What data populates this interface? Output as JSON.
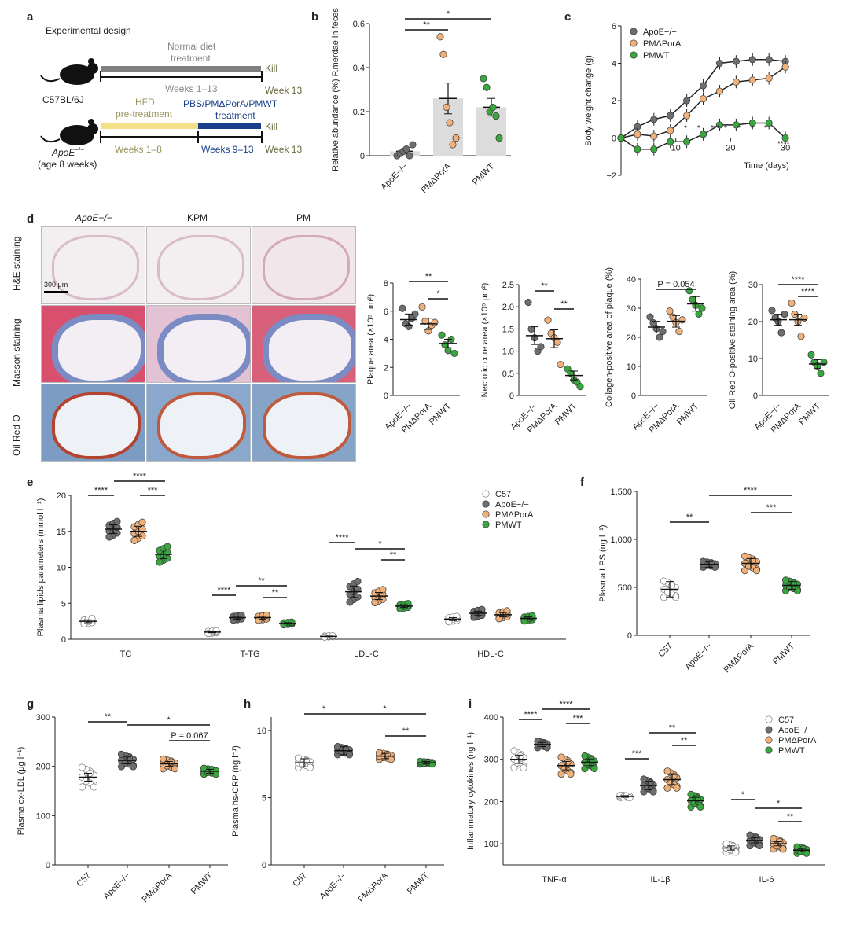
{
  "panels": {
    "a": "a",
    "b": "b",
    "c": "c",
    "d": "d",
    "e": "e",
    "f": "f",
    "g": "g",
    "h": "h",
    "i": "i"
  },
  "panel_a": {
    "title": "Experimental design",
    "mouse1": "C57BL/6J",
    "mouse2_name": "ApoE",
    "mouse2_sup": "−/−",
    "mouse2_age": "(age 8 weeks)",
    "normal_diet": "Normal diet",
    "treatment": "treatment",
    "weeks_1_13": "Weeks 1–13",
    "kill": "Kill",
    "week13": "Week 13",
    "hfd": "HFD",
    "pretreatment": "pre-treatment",
    "pbs_line": "PBS/PMΔPorA/PMWT",
    "weeks_1_8": "Weeks 1–8",
    "weeks_9_13": "Weeks 9–13",
    "colors": {
      "normal": "#808080",
      "hfd": "#f5e08a",
      "treat": "#1a3e8c",
      "hfd_text": "#9a9560",
      "treat_text": "#1a3e8c"
    }
  },
  "micro": {
    "columns": [
      "ApoE−/−",
      "KPM",
      "PM"
    ],
    "rows": [
      "H&E staining",
      "Masson staining",
      "Oil Red O"
    ],
    "scale": "300 μm"
  },
  "colors": {
    "apoe": "#6e6e6e",
    "pmd": "#f0b07a",
    "pmwt": "#3aa640",
    "c57": "#ffffff",
    "bar": "#dcdcdc"
  },
  "legend": {
    "c57": "C57",
    "apoe": "ApoE−/−",
    "pmd": "PMΔPorA",
    "pmwt": "PMWT"
  },
  "chart_data": [
    {
      "id": "b",
      "type": "bar",
      "categories": [
        "ApoE−/−",
        "PMΔPorA",
        "PMWT"
      ],
      "values": [
        0.02,
        0.26,
        0.22
      ],
      "errors": [
        0.01,
        0.07,
        0.04
      ],
      "points": [
        [
          0.0,
          0.01,
          0.02,
          0.03,
          0.0,
          0.05
        ],
        [
          0.54,
          0.46,
          0.22,
          0.15,
          0.05,
          0.08
        ],
        [
          0.35,
          0.31,
          0.2,
          0.22,
          0.18,
          0.08
        ]
      ],
      "ylabel": "Relative abundance (%) P.merdae in feces",
      "ylim": [
        0,
        0.6
      ],
      "yticks": [
        "0",
        "0.2",
        "0.4",
        "0.6"
      ],
      "sig": [
        {
          "label": "**"
        },
        {
          "label": "*"
        }
      ]
    },
    {
      "id": "c",
      "type": "line",
      "xlabel": "Time (days)",
      "ylabel": "Body weight change (g)",
      "xlim": [
        0,
        33
      ],
      "ylim": [
        -2,
        6
      ],
      "xticks": [
        "10",
        "20",
        "30"
      ],
      "yticks": [
        "−2",
        "0",
        "2",
        "4",
        "6"
      ],
      "series": [
        {
          "name": "ApoE−/−",
          "x": [
            0,
            3,
            6,
            9,
            12,
            15,
            18,
            21,
            24,
            27,
            30
          ],
          "y": [
            0,
            0.6,
            1.0,
            1.2,
            2.0,
            2.8,
            4.0,
            4.1,
            4.2,
            4.2,
            4.1
          ]
        },
        {
          "name": "PMΔPorA",
          "x": [
            0,
            3,
            6,
            9,
            12,
            15,
            18,
            21,
            24,
            27,
            30
          ],
          "y": [
            0,
            0.2,
            0.1,
            0.4,
            1.2,
            2.1,
            2.5,
            3.0,
            3.1,
            3.2,
            3.8
          ]
        },
        {
          "name": "PMWT",
          "x": [
            0,
            3,
            6,
            9,
            12,
            15,
            18,
            21,
            24,
            27,
            30
          ],
          "y": [
            0,
            -0.6,
            -0.6,
            -0.2,
            -0.2,
            0.2,
            0.7,
            0.7,
            0.8,
            0.8,
            0.0
          ]
        }
      ],
      "sig": [
        "*",
        "*",
        "***",
        "*",
        "*",
        "*",
        "*",
        "****"
      ]
    },
    {
      "id": "d1",
      "type": "scatter",
      "categories": [
        "ApoE−/−",
        "PMΔPorA",
        "PMWT"
      ],
      "ylabel": "Plaque area (×10⁵ μm²)",
      "ylim": [
        0,
        8
      ],
      "yticks": [
        "0",
        "2",
        "4",
        "6",
        "8"
      ],
      "means": [
        5.4,
        5.1,
        3.7
      ],
      "errors": [
        0.4,
        0.4,
        0.3
      ],
      "points": [
        [
          6.2,
          5.1,
          4.9,
          5.5,
          5.8
        ],
        [
          6.3,
          5.3,
          4.6,
          5.0,
          5.2
        ],
        [
          4.3,
          3.6,
          3.2,
          4.0,
          3.0
        ]
      ],
      "sig": [
        "**",
        "*"
      ]
    },
    {
      "id": "d2",
      "type": "scatter",
      "categories": [
        "ApoE−/−",
        "PMΔPorA",
        "PMWT"
      ],
      "ylabel": "Necrotic core area (×10⁵ μm²)",
      "ylim": [
        0,
        2.5
      ],
      "yticks": [
        "0",
        "0.5",
        "1.0",
        "1.5",
        "2.0",
        "2.5"
      ],
      "means": [
        1.35,
        1.28,
        0.45
      ],
      "errors": [
        0.2,
        0.2,
        0.1
      ],
      "points": [
        [
          2.1,
          1.5,
          1.3,
          1.0,
          1.1
        ],
        [
          1.7,
          1.4,
          1.3,
          1.2,
          0.7
        ],
        [
          0.6,
          0.5,
          0.35,
          0.3,
          0.2
        ]
      ],
      "sig": [
        "**",
        "**"
      ]
    },
    {
      "id": "d3",
      "type": "scatter",
      "categories": [
        "ApoE−/−",
        "PMΔPorA",
        "PMWT"
      ],
      "ylabel": "Collagen-positive area of plaque (%)",
      "ylim": [
        0,
        40
      ],
      "yticks": [
        "0",
        "10",
        "20",
        "30",
        "40"
      ],
      "means": [
        23.5,
        25.5,
        31.5
      ],
      "errors": [
        2,
        2,
        2.5
      ],
      "points": [
        [
          27,
          25,
          23,
          20,
          22
        ],
        [
          29,
          27,
          25,
          22,
          26
        ],
        [
          36,
          33,
          31,
          28,
          30
        ]
      ],
      "sig": [
        "P = 0.054"
      ]
    },
    {
      "id": "d4",
      "type": "scatter",
      "categories": [
        "ApoE−/−",
        "PMΔPorA",
        "PMWT"
      ],
      "ylabel": "Oil Red O-positive staining area (%)",
      "ylim": [
        0,
        30
      ],
      "yticks": [
        "0",
        "10",
        "20",
        "30"
      ],
      "means": [
        20.5,
        20.5,
        8.5
      ],
      "errors": [
        1.5,
        1.5,
        1.2
      ],
      "points": [
        [
          23,
          21,
          20,
          17,
          22
        ],
        [
          25,
          22,
          20,
          16,
          21
        ],
        [
          11,
          9,
          8,
          6,
          9
        ]
      ],
      "sig": [
        "****",
        "****"
      ]
    },
    {
      "id": "e",
      "type": "scatter",
      "groups": [
        "TC",
        "T-TG",
        "LDL-C",
        "HDL-C"
      ],
      "ylabel": "Plasma lipids parameters (mmol l⁻¹)",
      "ylim": [
        0,
        20
      ],
      "yticks": [
        "0",
        "5",
        "10",
        "15",
        "20"
      ],
      "means": [
        [
          2.5,
          15.3,
          15.0,
          11.8
        ],
        [
          1.0,
          3.0,
          3.0,
          2.2
        ],
        [
          0.4,
          6.6,
          6.0,
          4.6
        ],
        [
          2.8,
          3.6,
          3.4,
          2.9
        ]
      ],
      "errors": [
        [
          0.2,
          0.6,
          0.7,
          0.6
        ],
        [
          0.1,
          0.2,
          0.2,
          0.1
        ],
        [
          0.05,
          0.8,
          0.5,
          0.2
        ],
        [
          0.2,
          0.3,
          0.3,
          0.2
        ]
      ],
      "sig": [
        "****",
        "****",
        "***",
        "****",
        "**",
        "**",
        "****",
        "*",
        "**"
      ]
    },
    {
      "id": "f",
      "type": "scatter",
      "categories": [
        "C57",
        "ApoE−/−",
        "PMΔPorA",
        "PMWT"
      ],
      "ylabel": "Plasma LPS (ng l⁻¹)",
      "ylim": [
        0,
        1500
      ],
      "yticks": [
        "0",
        "500",
        "1,000",
        "1,500"
      ],
      "means": [
        480,
        740,
        750,
        520
      ],
      "errors": [
        80,
        30,
        50,
        40
      ],
      "spread": [
        170,
        60,
        150,
        110
      ],
      "sig": [
        "**",
        "****",
        "***"
      ]
    },
    {
      "id": "g",
      "type": "scatter",
      "categories": [
        "C57",
        "ApoE−/−",
        "PMΔPorA",
        "PMWT"
      ],
      "ylabel": "Plasma ox-LDL (μg l⁻¹)",
      "ylim": [
        0,
        300
      ],
      "yticks": [
        "0",
        "100",
        "200",
        "300"
      ],
      "means": [
        178,
        212,
        205,
        190
      ],
      "errors": [
        8,
        7,
        5,
        4
      ],
      "spread": [
        40,
        25,
        20,
        12
      ],
      "sig": [
        "**",
        "*",
        "P = 0.067"
      ]
    },
    {
      "id": "h",
      "type": "scatter",
      "categories": [
        "C57",
        "ApoE−/−",
        "PMΔPorA",
        "PMWT"
      ],
      "ylabel": "Plasma hs-CRP (ng l⁻¹)",
      "ylim": [
        0,
        11
      ],
      "yticks": [
        "0",
        "5",
        "10"
      ],
      "means": [
        7.6,
        8.5,
        8.1,
        7.6
      ],
      "errors": [
        0.3,
        0.3,
        0.2,
        0.1
      ],
      "spread": [
        0.7,
        0.6,
        0.5,
        0.2
      ],
      "sig": [
        "*",
        "*",
        "**"
      ]
    },
    {
      "id": "i",
      "type": "scatter",
      "groups": [
        "TNF-α",
        "IL-1β",
        "IL-6"
      ],
      "ylabel": "Inflammatory cytokines (ng l⁻¹)",
      "ylim": [
        50,
        400
      ],
      "yticks": [
        "100",
        "200",
        "300",
        "400"
      ],
      "means": [
        [
          300,
          335,
          285,
          293
        ],
        [
          212,
          238,
          252,
          202
        ],
        [
          90,
          108,
          100,
          85
        ]
      ],
      "errors": [
        [
          10,
          5,
          10,
          8
        ],
        [
          2,
          10,
          12,
          8
        ],
        [
          5,
          6,
          5,
          4
        ]
      ],
      "spread": [
        [
          40,
          15,
          40,
          30
        ],
        [
          6,
          30,
          40,
          30
        ],
        [
          20,
          25,
          25,
          15
        ]
      ],
      "sig": [
        "****",
        "****",
        "***",
        "***",
        "**",
        "**",
        "*",
        "*",
        "**"
      ]
    }
  ]
}
